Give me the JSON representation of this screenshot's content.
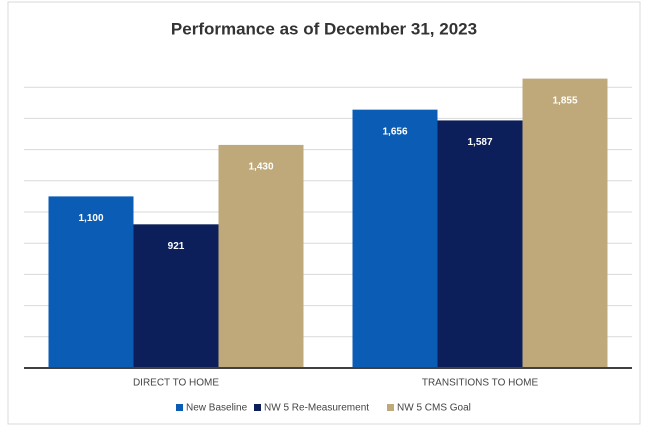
{
  "chart_data": {
    "type": "bar",
    "title": "Performance as of December 31, 2023",
    "categories": [
      "DIRECT TO HOME",
      "TRANSITIONS TO HOME"
    ],
    "series": [
      {
        "name": "New Baseline",
        "color": "#0b5cb5",
        "values": [
          1100,
          1656
        ],
        "value_labels": [
          "1,100",
          "1,656"
        ]
      },
      {
        "name": "NW 5 Re-Measurement",
        "color": "#0c1f5b",
        "values": [
          921,
          1587
        ],
        "value_labels": [
          "921",
          "1,587"
        ]
      },
      {
        "name": "NW 5 CMS Goal",
        "color": "#bfa97b",
        "values": [
          1430,
          1855
        ],
        "value_labels": [
          "1,430",
          "1,855"
        ]
      }
    ],
    "ylim": [
      0,
      2000
    ],
    "yticks": [
      0,
      200,
      400,
      600,
      800,
      1000,
      1200,
      1400,
      1600,
      1800
    ],
    "grid": true
  }
}
